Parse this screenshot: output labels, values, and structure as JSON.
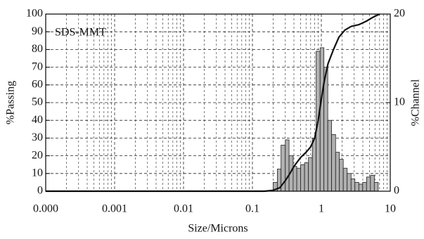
{
  "chart_data": {
    "type": "histogram-line",
    "annotation": "SDS-MMT",
    "xlabel": "Size/Microns",
    "ylabel": "%Passing",
    "y2label": "%Channel",
    "xscale": "log",
    "grid": true,
    "xlim": [
      0.0001,
      10
    ],
    "xticks": [
      {
        "value": 0.0001,
        "label": "0.000"
      },
      0.001,
      0.01,
      0.1,
      1,
      10
    ],
    "ylim": [
      0,
      100
    ],
    "yticks": [
      0,
      10,
      20,
      30,
      40,
      50,
      60,
      70,
      80,
      90,
      100
    ],
    "y2lim": [
      0,
      20
    ],
    "y2ticks": [
      0,
      10,
      20
    ],
    "bins": [
      0.2,
      0.23,
      0.26,
      0.3,
      0.34,
      0.39,
      0.44,
      0.5,
      0.57,
      0.65,
      0.74,
      0.84,
      0.96,
      1.09,
      1.24,
      1.41,
      1.61,
      1.83,
      2.08,
      2.37,
      2.7,
      3.07,
      3.5,
      3.98,
      4.53,
      5.16,
      5.87,
      6.68
    ],
    "counts": [
      1,
      2.5,
      5.2,
      5.8,
      4,
      2.8,
      2.6,
      3,
      3.2,
      3.8,
      6,
      15.8,
      16.2,
      14,
      8,
      6.4,
      4.4,
      3.6,
      2.6,
      2,
      1.4,
      1,
      0.8,
      1,
      1.6,
      1.8,
      1
    ],
    "bar_color": "#b0b0b0",
    "line": {
      "color": "#111111",
      "x": [
        0.0001,
        0.15,
        0.2,
        0.25,
        0.3,
        0.35,
        0.4,
        0.5,
        0.6,
        0.7,
        0.8,
        0.9,
        1.0,
        1.1,
        1.25,
        1.5,
        1.8,
        2.2,
        2.7,
        3.5,
        4.5,
        5.5,
        7
      ],
      "values": [
        0,
        0,
        0.5,
        2,
        6,
        10,
        14,
        19,
        22,
        25,
        30,
        40,
        52,
        62,
        72,
        80,
        87,
        91,
        93,
        94,
        96,
        98,
        100
      ]
    }
  }
}
